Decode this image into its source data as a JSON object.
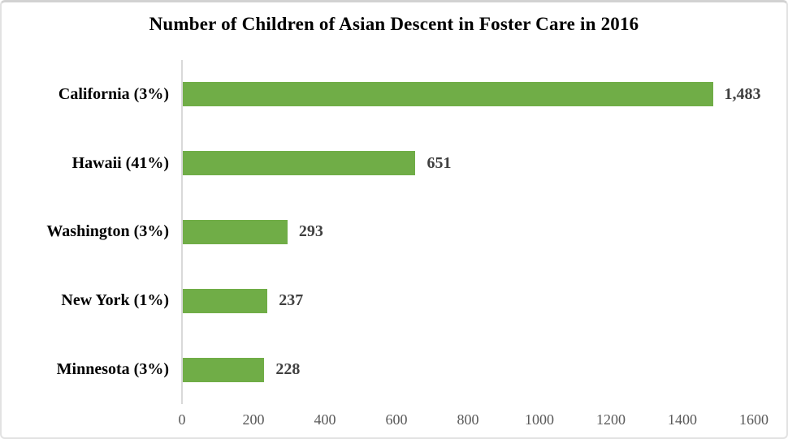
{
  "chart_data": {
    "type": "bar",
    "orientation": "horizontal",
    "title": "Number of Children of Asian Descent in Foster Care in 2016",
    "categories": [
      "California (3%)",
      "Hawaii (41%)",
      "Washington (3%)",
      "New York (1%)",
      "Minnesota (3%)"
    ],
    "values": [
      1483,
      651,
      293,
      237,
      228
    ],
    "value_labels": [
      "1,483",
      "651",
      "293",
      "237",
      "228"
    ],
    "xlabel": "",
    "ylabel": "",
    "xlim": [
      0,
      1600
    ],
    "x_tick_labels": [
      "0",
      "200",
      "400",
      "600",
      "800",
      "1000",
      "1200",
      "1400",
      "1600"
    ],
    "grid": false,
    "legend": false,
    "colors": {
      "bar": "#70ad47",
      "axis_line": "#d9d9d9",
      "tick_label": "#595959",
      "value_label": "#404040",
      "category_label": "#000000",
      "title": "#000000",
      "background": "#ffffff"
    }
  }
}
